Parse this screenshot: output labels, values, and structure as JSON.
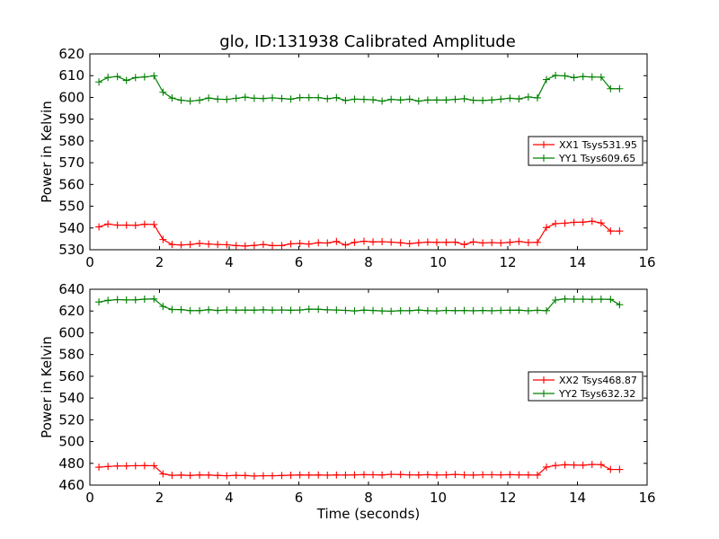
{
  "title": "glo, ID:131938 Calibrated Amplitude",
  "chart_data": [
    {
      "type": "line",
      "title": "glo, ID:131938 Calibrated Amplitude",
      "xlabel": "",
      "ylabel": "Power in Kelvin",
      "xlim": [
        0,
        16
      ],
      "ylim": [
        530,
        620
      ],
      "xticks": [
        0,
        2,
        4,
        6,
        8,
        10,
        12,
        14,
        16
      ],
      "yticks": [
        530,
        540,
        550,
        560,
        570,
        580,
        590,
        600,
        610,
        620
      ],
      "legend_position": "center-right",
      "marker": "+",
      "x": [
        0.26,
        0.52,
        0.79,
        1.05,
        1.31,
        1.57,
        1.84,
        2.1,
        2.36,
        2.62,
        2.88,
        3.15,
        3.41,
        3.67,
        3.93,
        4.2,
        4.46,
        4.72,
        4.98,
        5.24,
        5.51,
        5.77,
        6.03,
        6.29,
        6.56,
        6.82,
        7.08,
        7.34,
        7.6,
        7.87,
        8.13,
        8.39,
        8.65,
        8.92,
        9.18,
        9.44,
        9.7,
        9.96,
        10.23,
        10.49,
        10.75,
        11.01,
        11.28,
        11.54,
        11.8,
        12.06,
        12.32,
        12.59,
        12.85,
        13.11,
        13.37,
        13.64,
        13.9,
        14.16,
        14.42,
        14.68,
        14.95,
        15.21
      ],
      "series": [
        {
          "name": "XX1 Tsys531.95",
          "color": "#ff0000",
          "values": [
            540.5,
            541.8,
            541.3,
            541.3,
            541.2,
            541.7,
            541.6,
            534.7,
            532.4,
            532.2,
            532.4,
            532.9,
            532.6,
            532.4,
            532.3,
            531.9,
            531.7,
            532.0,
            532.4,
            531.9,
            531.9,
            532.7,
            532.9,
            532.6,
            533.2,
            533.1,
            533.8,
            532.2,
            533.4,
            533.9,
            533.6,
            533.7,
            533.5,
            533.2,
            532.8,
            533.2,
            533.5,
            533.4,
            533.4,
            533.5,
            532.4,
            533.6,
            533.1,
            533.3,
            533.1,
            533.4,
            533.8,
            533.3,
            533.4,
            540.2,
            542.0,
            542.2,
            542.6,
            542.7,
            543.1,
            542.3,
            538.6,
            538.6
          ]
        },
        {
          "name": "YY1 Tsys609.65",
          "color": "#008000",
          "values": [
            607.1,
            609.2,
            609.6,
            607.8,
            609.1,
            609.4,
            609.9,
            602.4,
            599.7,
            598.7,
            598.3,
            598.7,
            599.7,
            599.2,
            599.1,
            599.6,
            600.1,
            599.6,
            599.5,
            599.8,
            599.5,
            599.2,
            599.9,
            599.9,
            599.9,
            599.4,
            599.9,
            598.6,
            599.2,
            599.1,
            598.9,
            598.3,
            599.1,
            598.8,
            599.2,
            598.3,
            598.8,
            598.8,
            598.8,
            599.1,
            599.4,
            598.7,
            598.6,
            598.8,
            599.2,
            599.6,
            599.3,
            600.2,
            599.8,
            608.2,
            610.1,
            609.9,
            609.1,
            609.6,
            609.4,
            609.3,
            604.0,
            604.0
          ]
        }
      ]
    },
    {
      "type": "line",
      "title": "",
      "xlabel": "Time (seconds)",
      "ylabel": "Power in Kelvin",
      "xlim": [
        0,
        16
      ],
      "ylim": [
        460,
        640
      ],
      "xticks": [
        0,
        2,
        4,
        6,
        8,
        10,
        12,
        14,
        16
      ],
      "yticks": [
        460,
        480,
        500,
        520,
        540,
        560,
        580,
        600,
        620,
        640
      ],
      "legend_position": "center-right",
      "marker": "+",
      "x": [
        0.26,
        0.52,
        0.79,
        1.05,
        1.31,
        1.57,
        1.84,
        2.1,
        2.36,
        2.62,
        2.88,
        3.15,
        3.41,
        3.67,
        3.93,
        4.2,
        4.46,
        4.72,
        4.98,
        5.24,
        5.51,
        5.77,
        6.03,
        6.29,
        6.56,
        6.82,
        7.08,
        7.34,
        7.6,
        7.87,
        8.13,
        8.39,
        8.65,
        8.92,
        9.18,
        9.44,
        9.7,
        9.96,
        10.23,
        10.49,
        10.75,
        11.01,
        11.28,
        11.54,
        11.8,
        12.06,
        12.32,
        12.59,
        12.85,
        13.11,
        13.37,
        13.64,
        13.9,
        14.16,
        14.42,
        14.68,
        14.95,
        15.21
      ],
      "series": [
        {
          "name": "XX2 Tsys468.87",
          "color": "#ff0000",
          "values": [
            476.5,
            477.1,
            477.6,
            477.6,
            477.8,
            477.9,
            477.8,
            470.3,
            469.0,
            469.2,
            468.9,
            469.3,
            469.2,
            468.9,
            468.6,
            469.0,
            468.8,
            468.3,
            468.6,
            468.6,
            468.8,
            469.1,
            469.3,
            469.2,
            469.3,
            469.1,
            469.3,
            469.2,
            469.4,
            469.6,
            469.5,
            469.3,
            469.9,
            469.7,
            469.4,
            469.3,
            469.6,
            469.3,
            469.4,
            469.8,
            469.4,
            469.2,
            469.5,
            469.5,
            469.4,
            469.6,
            469.4,
            469.4,
            469.2,
            476.6,
            478.0,
            478.7,
            478.5,
            478.3,
            479.0,
            478.8,
            474.4,
            474.4
          ]
        },
        {
          "name": "YY2 Tsys632.32",
          "color": "#008000",
          "values": [
            628.3,
            629.8,
            630.5,
            630.2,
            630.3,
            630.9,
            631.1,
            624.2,
            621.4,
            621.3,
            620.4,
            620.4,
            621.2,
            620.5,
            621.0,
            620.8,
            620.9,
            620.8,
            621.1,
            620.8,
            621.0,
            620.7,
            620.9,
            621.7,
            621.6,
            621.1,
            620.9,
            620.6,
            620.1,
            620.8,
            620.5,
            620.1,
            619.8,
            620.3,
            620.3,
            620.9,
            620.3,
            620.1,
            620.6,
            620.3,
            620.5,
            620.2,
            620.5,
            620.2,
            620.6,
            620.7,
            620.8,
            620.2,
            620.7,
            620.3,
            630.1,
            631.1,
            630.9,
            630.9,
            630.7,
            630.9,
            630.7,
            625.8
          ]
        }
      ]
    }
  ]
}
